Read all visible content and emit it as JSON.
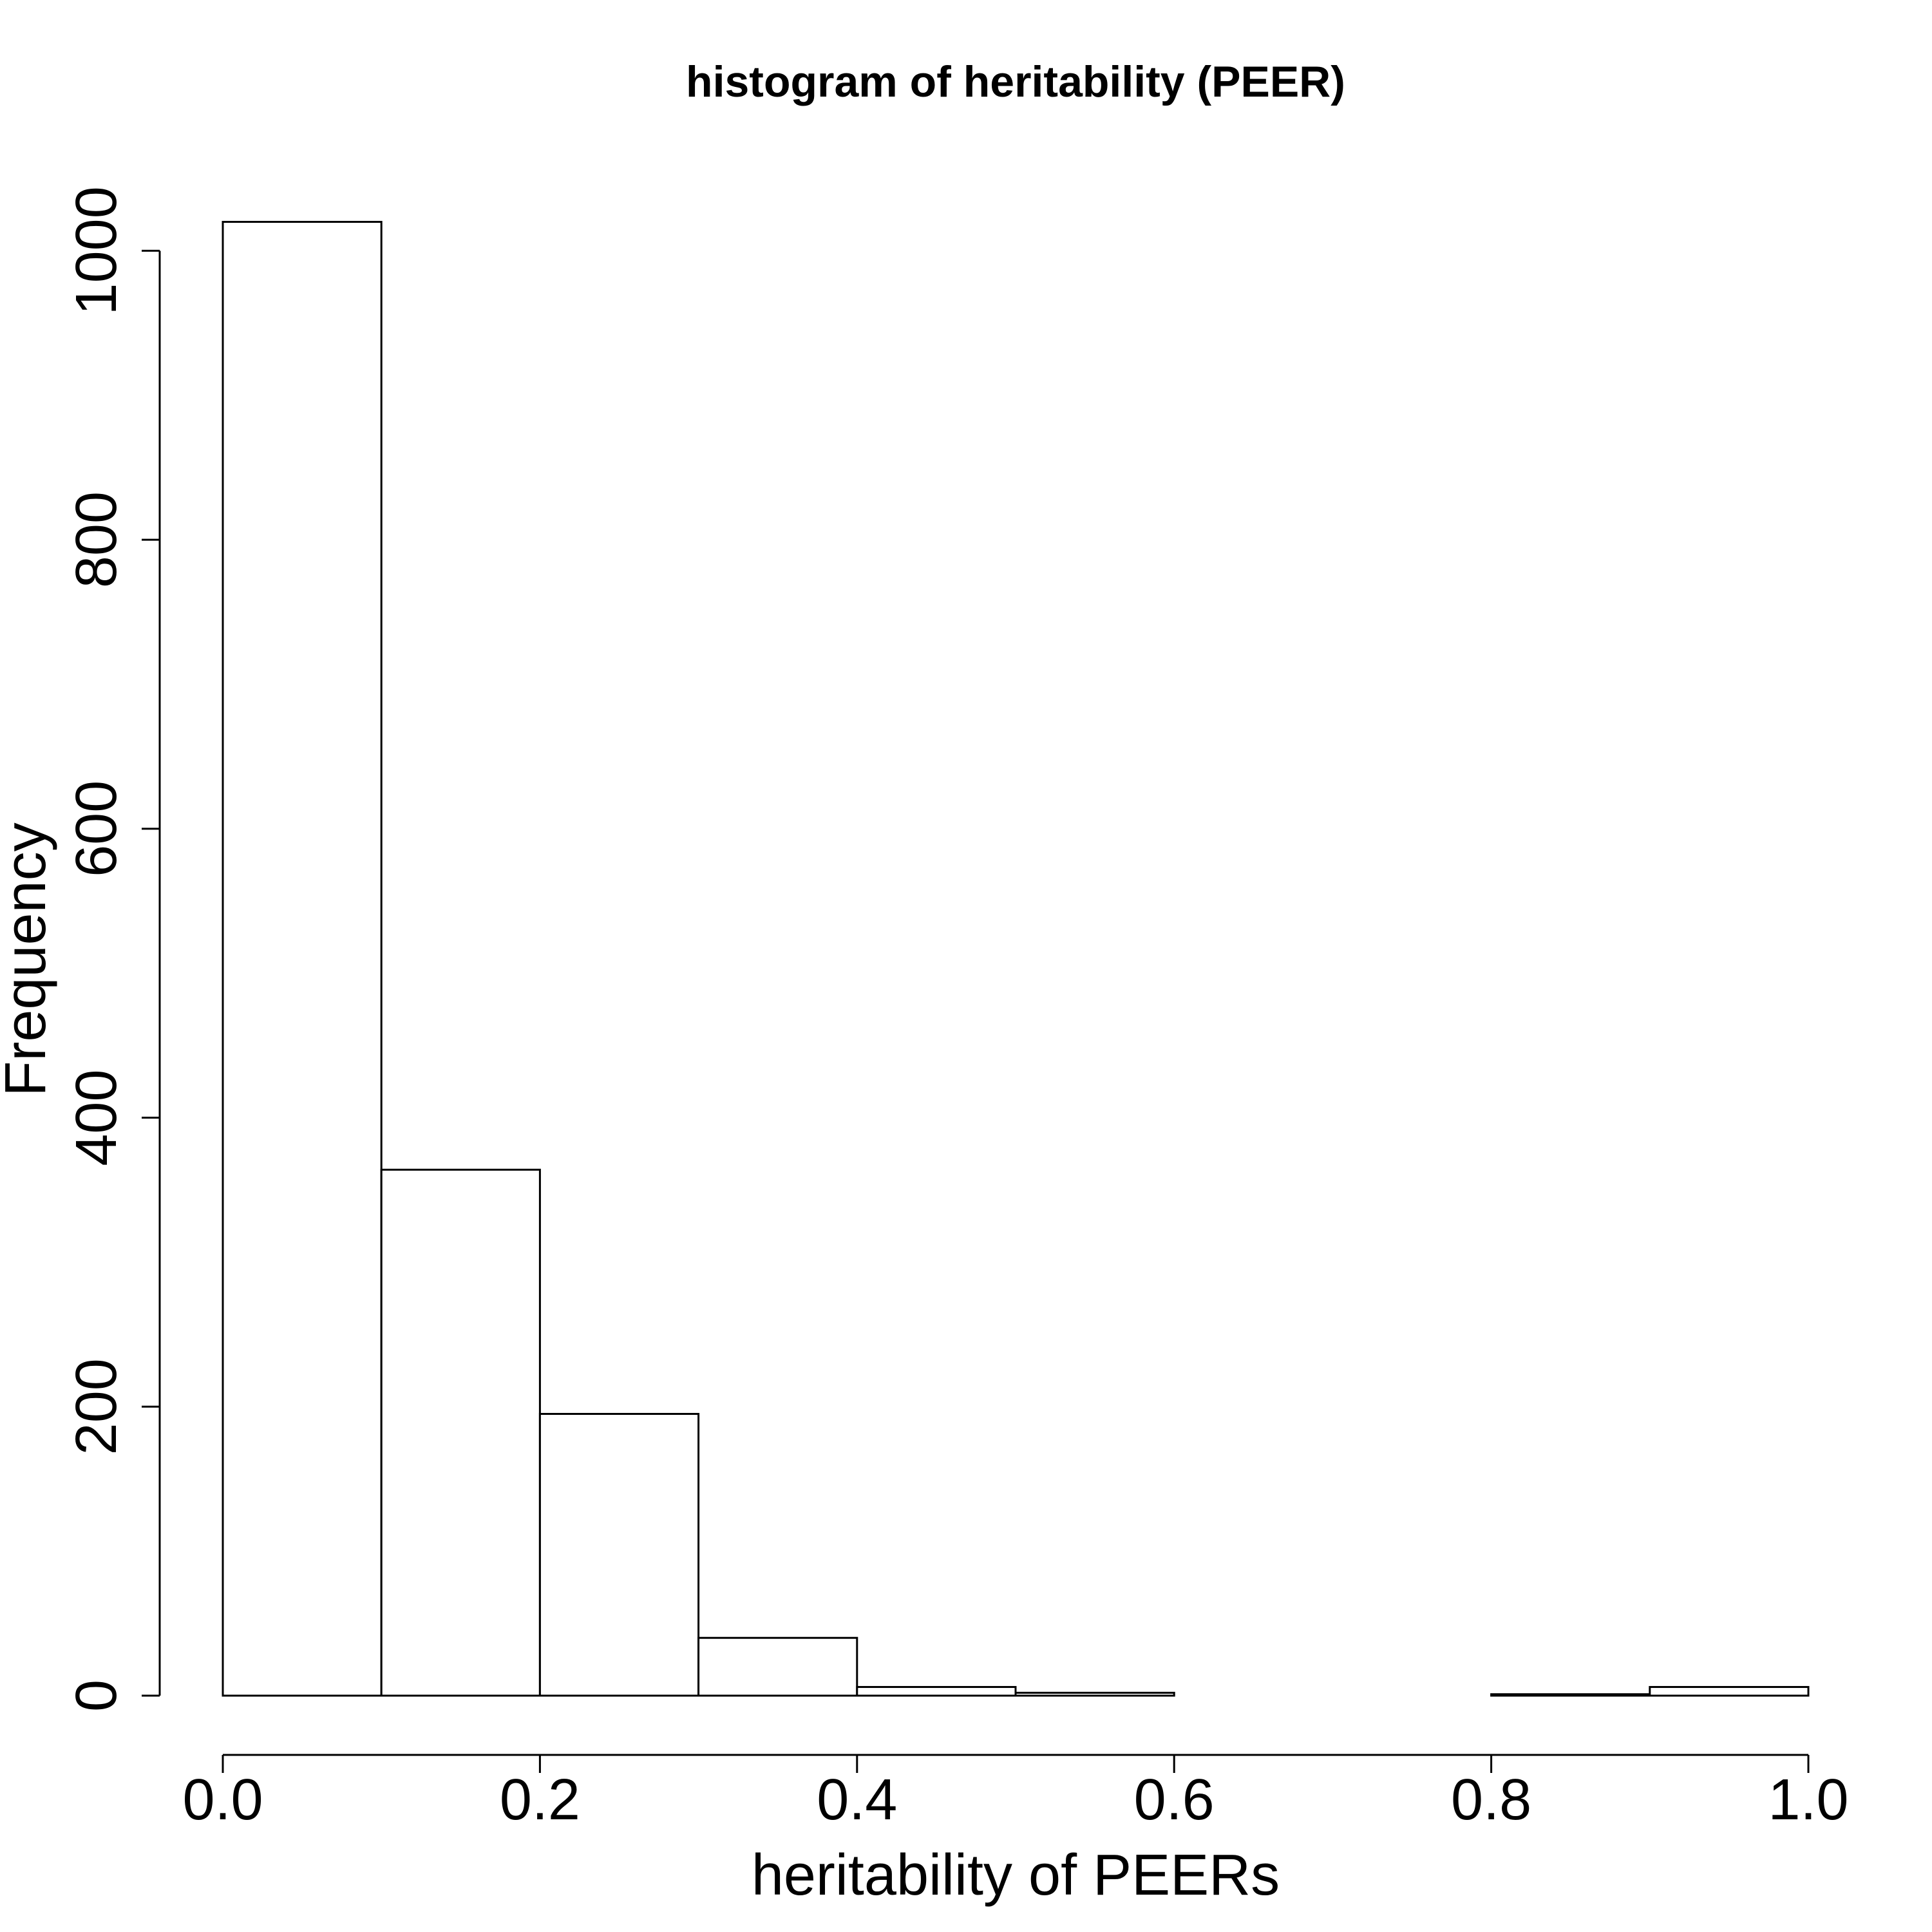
{
  "chart_data": {
    "type": "bar",
    "title": "histogram of heritability (PEER)",
    "xlabel": "heritability of PEERs",
    "ylabel": "Frequency",
    "xlim": [
      0,
      1
    ],
    "ylim": [
      0,
      1022
    ],
    "bins": [
      {
        "start": 0.0,
        "end": 0.1,
        "count": 1020
      },
      {
        "start": 0.1,
        "end": 0.2,
        "count": 364
      },
      {
        "start": 0.2,
        "end": 0.3,
        "count": 195
      },
      {
        "start": 0.3,
        "end": 0.4,
        "count": 40
      },
      {
        "start": 0.4,
        "end": 0.5,
        "count": 6
      },
      {
        "start": 0.5,
        "end": 0.6,
        "count": 2
      },
      {
        "start": 0.6,
        "end": 0.7,
        "count": 0
      },
      {
        "start": 0.7,
        "end": 0.8,
        "count": 0
      },
      {
        "start": 0.8,
        "end": 0.9,
        "count": 1
      },
      {
        "start": 0.9,
        "end": 1.0,
        "count": 6
      }
    ],
    "x_ticks": [
      {
        "value": 0.0,
        "label": "0.0"
      },
      {
        "value": 0.2,
        "label": "0.2"
      },
      {
        "value": 0.4,
        "label": "0.4"
      },
      {
        "value": 0.6,
        "label": "0.6"
      },
      {
        "value": 0.8,
        "label": "0.8"
      },
      {
        "value": 1.0,
        "label": "1.0"
      }
    ],
    "y_ticks": [
      {
        "value": 0,
        "label": "0"
      },
      {
        "value": 200,
        "label": "200"
      },
      {
        "value": 400,
        "label": "400"
      },
      {
        "value": 600,
        "label": "600"
      },
      {
        "value": 800,
        "label": "800"
      },
      {
        "value": 1000,
        "label": "1000"
      }
    ],
    "bar_fill": "#ffffff",
    "bar_stroke": "#000000",
    "grid": false,
    "legend": "none"
  }
}
